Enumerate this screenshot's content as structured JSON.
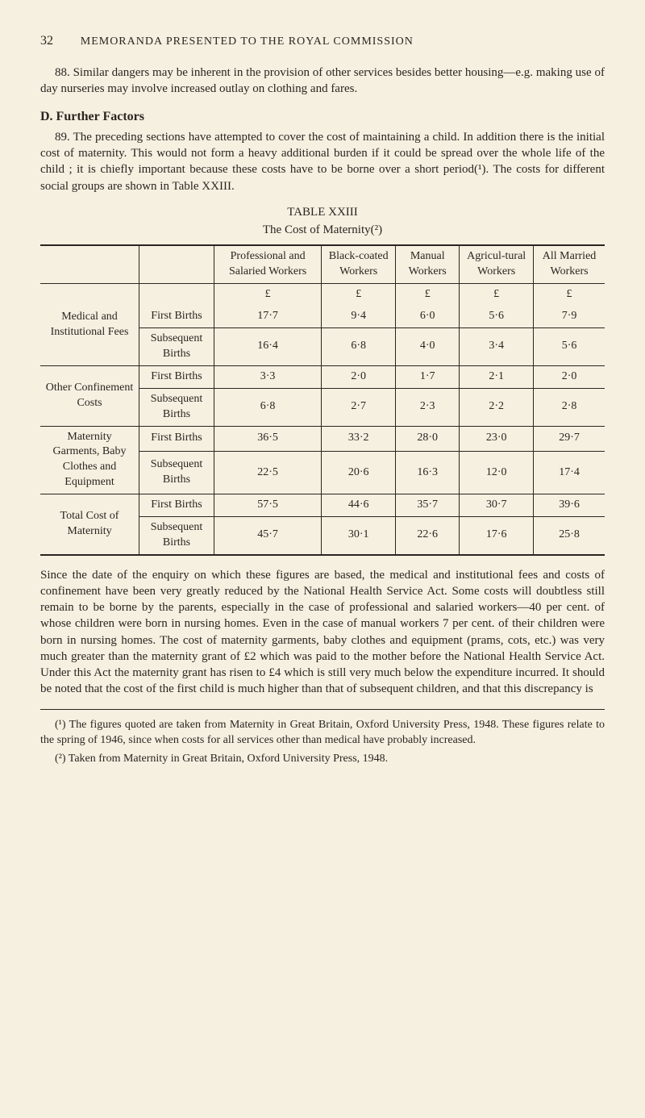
{
  "page_number": "32",
  "running_head": "MEMORANDA PRESENTED TO THE ROYAL COMMISSION",
  "para_88": "88. Similar dangers may be inherent in the provision of other services besides better housing—e.g. making use of day nurseries may involve increased outlay on clothing and fares.",
  "section_d_head": "D. Further Factors",
  "para_89": "89. The preceding sections have attempted to cover the cost of maintaining a child. In addition there is the initial cost of maternity. This would not form a heavy additional burden if it could be spread over the whole life of the child ; it is chiefly important because these costs have to be borne over a short period(¹). The costs for different social groups are shown in Table XXIII.",
  "table": {
    "title": "TABLE XXIII",
    "subtitle": "The Cost of Maternity(²)",
    "columns": [
      "Professional and Salaried Workers",
      "Black-coated Workers",
      "Manual Workers",
      "Agricul-tural Workers",
      "All Married Workers"
    ],
    "currency": "£",
    "row_groups": [
      {
        "label": "Medical and Institutional Fees",
        "rows": [
          {
            "sub": "First Births",
            "vals": [
              "17·7",
              "9·4",
              "6·0",
              "5·6",
              "7·9"
            ]
          },
          {
            "sub": "Subsequent Births",
            "vals": [
              "16·4",
              "6·8",
              "4·0",
              "3·4",
              "5·6"
            ]
          }
        ]
      },
      {
        "label": "Other Confinement Costs",
        "rows": [
          {
            "sub": "First Births",
            "vals": [
              "3·3",
              "2·0",
              "1·7",
              "2·1",
              "2·0"
            ]
          },
          {
            "sub": "Subsequent Births",
            "vals": [
              "6·8",
              "2·7",
              "2·3",
              "2·2",
              "2·8"
            ]
          }
        ]
      },
      {
        "label": "Maternity Garments, Baby Clothes and Equipment",
        "rows": [
          {
            "sub": "First Births",
            "vals": [
              "36·5",
              "33·2",
              "28·0",
              "23·0",
              "29·7"
            ]
          },
          {
            "sub": "Subsequent Births",
            "vals": [
              "22·5",
              "20·6",
              "16·3",
              "12·0",
              "17·4"
            ]
          }
        ]
      },
      {
        "label": "Total Cost of Maternity",
        "rows": [
          {
            "sub": "First Births",
            "vals": [
              "57·5",
              "44·6",
              "35·7",
              "30·7",
              "39·6"
            ]
          },
          {
            "sub": "Subsequent Births",
            "vals": [
              "45·7",
              "30·1",
              "22·6",
              "17·6",
              "25·8"
            ]
          }
        ]
      }
    ]
  },
  "para_after": "Since the date of the enquiry on which these figures are based, the medical and institutional fees and costs of confinement have been very greatly reduced by the National Health Service Act. Some costs will doubtless still remain to be borne by the parents, especially in the case of professional and salaried workers—40 per cent. of whose children were born in nursing homes. Even in the case of manual workers 7 per cent. of their children were born in nursing homes. The cost of maternity garments, baby clothes and equipment (prams, cots, etc.) was very much greater than the maternity grant of £2 which was paid to the mother before the National Health Service Act. Under this Act the maternity grant has risen to £4 which is still very much below the expenditure incurred. It should be noted that the cost of the first child is much higher than that of subsequent children, and that this discrepancy is",
  "footnote_1": "(¹) The figures quoted are taken from Maternity in Great Britain, Oxford University Press, 1948. These figures relate to the spring of 1946, since when costs for all services other than medical have probably increased.",
  "footnote_2": "(²) Taken from Maternity in Great Britain, Oxford University Press, 1948."
}
